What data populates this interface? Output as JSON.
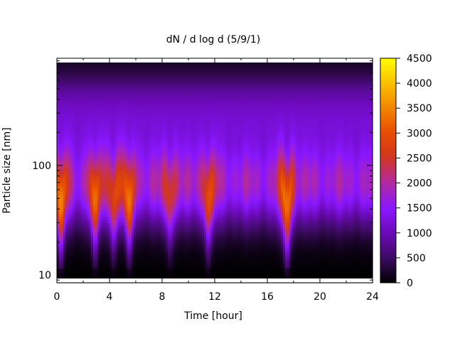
{
  "chart_data": {
    "type": "heatmap",
    "title": "dN / d log d (5/9/1)",
    "xlabel": "Time [hour]",
    "ylabel": "Particle size [nm]",
    "xlim": [
      0,
      24
    ],
    "ylim": [
      8.5,
      950
    ],
    "yscale": "log",
    "x_ticks": [
      0,
      4,
      8,
      12,
      16,
      20,
      24
    ],
    "y_ticks": [
      10,
      100
    ],
    "colorbar": {
      "range": [
        0,
        4500
      ],
      "ticks": [
        0,
        500,
        1000,
        1500,
        2000,
        2500,
        3000,
        3500,
        4000,
        4500
      ],
      "palette": [
        "#000000",
        "#3d0a63",
        "#6b0ab8",
        "#8a17ff",
        "#b42a9c",
        "#d2361f",
        "#e84e00",
        "#f69b00",
        "#ffff00"
      ]
    },
    "mode_peaks_hour": [
      {
        "hour": 0.3,
        "intensity": 0.9
      },
      {
        "hour": 2.9,
        "intensity": 0.75
      },
      {
        "hour": 4.3,
        "intensity": 0.7
      },
      {
        "hour": 5.5,
        "intensity": 0.8
      },
      {
        "hour": 8.6,
        "intensity": 0.6
      },
      {
        "hour": 11.5,
        "intensity": 0.72
      },
      {
        "hour": 17.5,
        "intensity": 1.0
      }
    ]
  }
}
